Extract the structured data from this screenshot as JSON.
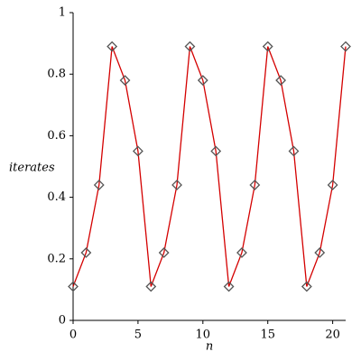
{
  "chart_data": {
    "type": "line",
    "xlabel": "n",
    "ylabel": "iterates",
    "x": [
      0,
      1,
      2,
      3,
      4,
      5,
      6,
      7,
      8,
      9,
      10,
      11,
      12,
      13,
      14,
      15,
      16,
      17,
      18,
      19,
      20,
      21
    ],
    "values": [
      0.11,
      0.22,
      0.44,
      0.89,
      0.78,
      0.55,
      0.11,
      0.22,
      0.44,
      0.89,
      0.78,
      0.55,
      0.11,
      0.22,
      0.44,
      0.89,
      0.78,
      0.55,
      0.11,
      0.22,
      0.44,
      0.89
    ],
    "color": "#d40000",
    "marker": "diamond",
    "marker_color": "#555555",
    "xlim": [
      0,
      21
    ],
    "xticks": [
      0,
      5,
      10,
      15,
      20
    ],
    "ylim": [
      0,
      1
    ],
    "yticks": [
      0,
      0.2,
      0.4,
      0.6,
      0.8,
      1
    ]
  }
}
